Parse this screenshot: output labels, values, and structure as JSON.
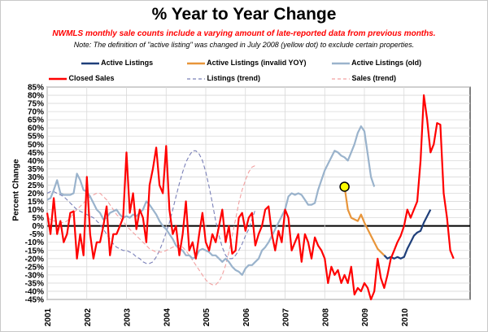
{
  "title": "% Year to Year Change",
  "subtitle_red": "NWMLS monthly sale counts include a varying amount of late-reported data from previous months.",
  "subtitle_note": "Note: The definition of \"active listing\" was changed in July 2008 (yellow dot) to exclude certain properties.",
  "colors": {
    "active": "#1f3f7a",
    "active_invalid": "#e8953a",
    "active_old": "#9ab3cc",
    "closed": "#ff0000",
    "listings_trend": "#7a80b8",
    "sales_trend": "#f2a0a0",
    "dot": "#ffff00"
  },
  "chart_data": {
    "type": "line",
    "ylabel": "Percent Change",
    "ylim": [
      -45,
      85
    ],
    "yticks": [
      "85%",
      "80%",
      "75%",
      "70%",
      "65%",
      "60%",
      "55%",
      "50%",
      "45%",
      "40%",
      "35%",
      "30%",
      "25%",
      "20%",
      "15%",
      "10%",
      "5%",
      "0%",
      "-5%",
      "-10%",
      "-15%",
      "-20%",
      "-25%",
      "-30%",
      "-35%",
      "-40%",
      "-45%"
    ],
    "xlabels": [
      "2001",
      "2002",
      "2003",
      "2004",
      "2005",
      "2006",
      "2007",
      "2008",
      "2009",
      "2010"
    ],
    "x_start": "2001-01",
    "legend_position": "top",
    "highlight_point": {
      "x": "2008-07",
      "y": 24
    },
    "series": [
      {
        "name": "Active Listings",
        "style": "solid",
        "x_start": "2009-07",
        "values": [
          -18,
          -20,
          -19,
          -20,
          -19,
          -20,
          -19,
          -14,
          -10,
          -6,
          -4,
          -3,
          2,
          6,
          10
        ]
      },
      {
        "name": "Active Listings (invalid YOY)",
        "style": "solid",
        "x_start": "2008-07",
        "values": [
          24,
          10,
          5,
          4,
          3,
          7,
          2,
          -2,
          -6,
          -10,
          -14,
          -16,
          -18
        ]
      },
      {
        "name": "Active Listings (old)",
        "style": "solid",
        "x_start": "2001-01",
        "values": [
          16,
          17,
          22,
          28,
          20,
          19,
          19,
          19,
          20,
          32,
          28,
          22,
          21,
          18,
          14,
          10,
          8,
          4,
          5,
          8,
          9,
          10,
          7,
          5,
          6,
          5,
          7,
          6,
          8,
          10,
          15,
          13,
          10,
          7,
          3,
          0,
          -2,
          -5,
          -8,
          -12,
          -14,
          -15,
          -18,
          -18,
          -20,
          -19,
          -15,
          -14,
          -15,
          -16,
          -18,
          -18,
          -20,
          -22,
          -20,
          -22,
          -25,
          -27,
          -28,
          -30,
          -26,
          -24,
          -24,
          -22,
          -20,
          -15,
          -13,
          -10,
          -6,
          -2,
          2,
          6,
          10,
          18,
          20,
          19,
          20,
          19,
          16,
          13,
          13,
          14,
          22,
          28,
          34,
          38,
          42,
          46,
          45,
          43,
          42,
          40,
          45,
          50,
          57,
          61,
          58,
          44,
          30,
          24
        ]
      },
      {
        "name": "Closed Sales",
        "style": "solid",
        "x_start": "2001-01",
        "values": [
          8,
          -5,
          17,
          -5,
          3,
          -10,
          -5,
          8,
          9,
          -20,
          -5,
          -18,
          30,
          -5,
          -20,
          -10,
          -10,
          0,
          12,
          -18,
          -5,
          -5,
          0,
          5,
          45,
          8,
          20,
          -2,
          10,
          5,
          -10,
          25,
          35,
          48,
          25,
          20,
          49,
          10,
          -5,
          0,
          -18,
          -5,
          15,
          -15,
          -10,
          -20,
          -5,
          8,
          -10,
          -15,
          -5,
          -10,
          0,
          10,
          -10,
          0,
          -17,
          -15,
          5,
          8,
          -3,
          5,
          8,
          -12,
          -5,
          0,
          10,
          12,
          -5,
          -15,
          -3,
          -10,
          10,
          5,
          -15,
          -10,
          -5,
          -22,
          -5,
          -10,
          -20,
          -7,
          -12,
          -15,
          -20,
          -35,
          -25,
          -30,
          -27,
          -35,
          -30,
          -35,
          -25,
          -42,
          -38,
          -40,
          -35,
          -38,
          -45,
          -40,
          -20,
          -32,
          -38,
          -30,
          -20,
          -15,
          -10,
          -6,
          0,
          10,
          5,
          10,
          15,
          40,
          80,
          65,
          45,
          50,
          63,
          62,
          20,
          5,
          -15,
          -20
        ]
      },
      {
        "name": "Listings (trend)",
        "style": "dashed",
        "x_start": "2001-01",
        "values": [
          20,
          21,
          21,
          20,
          19,
          18,
          16,
          14,
          12,
          10,
          9,
          8,
          7,
          6,
          5,
          3,
          1,
          -2,
          -5,
          -8,
          -11,
          -13,
          -14,
          -15,
          -15,
          -16,
          -17,
          -19,
          -20,
          -22,
          -23,
          -23,
          -22,
          -19,
          -15,
          -10,
          -4,
          2,
          10,
          18,
          26,
          33,
          39,
          43,
          46,
          46,
          44,
          40,
          33,
          24,
          14,
          3,
          -6,
          -13,
          -18,
          -20,
          -20,
          -18,
          -15,
          -11,
          -6,
          -2,
          4,
          10
        ]
      },
      {
        "name": "Sales (trend)",
        "style": "dashed",
        "x_start": "2001-01",
        "values": [
          5,
          4,
          3,
          3,
          2,
          2,
          3,
          5,
          8,
          10,
          12,
          14,
          16,
          18,
          19,
          20,
          20,
          18,
          16,
          13,
          10,
          7,
          5,
          3,
          0,
          -2,
          -4,
          -6,
          -8,
          -10,
          -12,
          -14,
          -15,
          -16,
          -16,
          -16,
          -15,
          -14,
          -13,
          -12,
          -12,
          -13,
          -15,
          -18,
          -21,
          -24,
          -27,
          -30,
          -33,
          -35,
          -36,
          -36,
          -34,
          -30,
          -24,
          -16,
          -6,
          4,
          14,
          22,
          28,
          33,
          36,
          37
        ]
      }
    ]
  }
}
